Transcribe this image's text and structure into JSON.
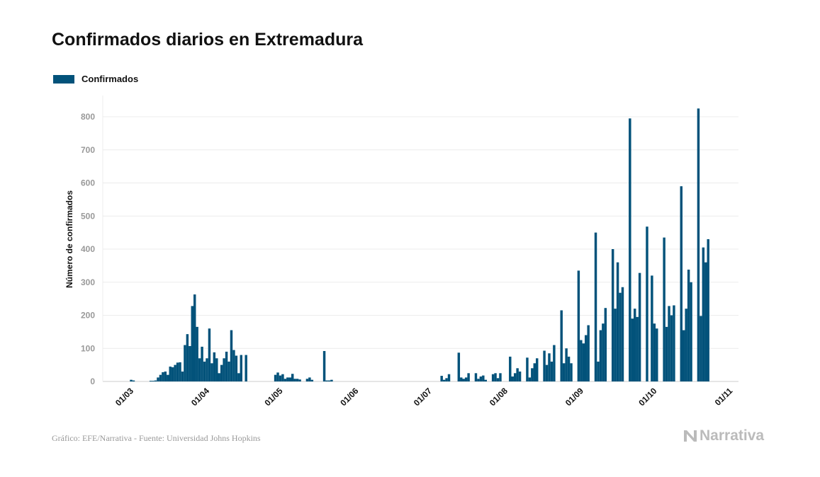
{
  "title": "Confirmados diarios en Extremadura",
  "source": "Gráfico: EFE/Narrativa - Fuente: Universidad Johns Hopkins",
  "logo": "Narrativa",
  "chart_data": {
    "type": "bar",
    "title": "Confirmados diarios en Extremadura",
    "xlabel": "",
    "ylabel": "Número de confirmados",
    "ylim": [
      0,
      860
    ],
    "yticks": [
      0,
      100,
      200,
      300,
      400,
      500,
      600,
      700,
      800
    ],
    "xticks": [
      "01/03",
      "01/04",
      "01/05",
      "01/06",
      "01/07",
      "01/08",
      "01/09",
      "01/10",
      "01/11"
    ],
    "grid": true,
    "legend_position": "top-left",
    "color": "#02527a",
    "series": [
      {
        "name": "Confirmados",
        "points": [
          [
            "01/03",
            5
          ],
          [
            "02/03",
            3
          ],
          [
            "09/03",
            2
          ],
          [
            "10/03",
            2
          ],
          [
            "11/03",
            3
          ],
          [
            "12/03",
            12
          ],
          [
            "13/03",
            20
          ],
          [
            "14/03",
            28
          ],
          [
            "15/03",
            30
          ],
          [
            "16/03",
            20
          ],
          [
            "17/03",
            45
          ],
          [
            "18/03",
            43
          ],
          [
            "19/03",
            50
          ],
          [
            "20/03",
            57
          ],
          [
            "21/03",
            58
          ],
          [
            "22/03",
            30
          ],
          [
            "23/03",
            110
          ],
          [
            "24/03",
            143
          ],
          [
            "25/03",
            107
          ],
          [
            "26/03",
            228
          ],
          [
            "27/03",
            263
          ],
          [
            "28/03",
            165
          ],
          [
            "29/03",
            70
          ],
          [
            "30/03",
            105
          ],
          [
            "31/03",
            60
          ],
          [
            "01/04",
            70
          ],
          [
            "02/04",
            160
          ],
          [
            "03/04",
            55
          ],
          [
            "04/04",
            88
          ],
          [
            "05/04",
            70
          ],
          [
            "06/04",
            25
          ],
          [
            "07/04",
            50
          ],
          [
            "08/04",
            70
          ],
          [
            "09/04",
            90
          ],
          [
            "10/04",
            60
          ],
          [
            "11/04",
            155
          ],
          [
            "12/04",
            95
          ],
          [
            "13/04",
            78
          ],
          [
            "14/04",
            25
          ],
          [
            "15/04",
            80
          ],
          [
            "17/04",
            80
          ],
          [
            "29/04",
            20
          ],
          [
            "30/04",
            27
          ],
          [
            "01/05",
            18
          ],
          [
            "02/05",
            22
          ],
          [
            "03/05",
            8
          ],
          [
            "04/05",
            12
          ],
          [
            "05/05",
            12
          ],
          [
            "06/05",
            23
          ],
          [
            "07/05",
            8
          ],
          [
            "08/05",
            8
          ],
          [
            "09/05",
            6
          ],
          [
            "12/05",
            8
          ],
          [
            "13/05",
            12
          ],
          [
            "14/05",
            5
          ],
          [
            "19/05",
            92
          ],
          [
            "20/05",
            3
          ],
          [
            "21/05",
            3
          ],
          [
            "22/05",
            5
          ],
          [
            "06/07",
            17
          ],
          [
            "07/07",
            5
          ],
          [
            "08/07",
            10
          ],
          [
            "09/07",
            22
          ],
          [
            "13/07",
            87
          ],
          [
            "14/07",
            12
          ],
          [
            "15/07",
            8
          ],
          [
            "16/07",
            12
          ],
          [
            "17/07",
            25
          ],
          [
            "20/07",
            25
          ],
          [
            "21/07",
            8
          ],
          [
            "22/07",
            15
          ],
          [
            "23/07",
            18
          ],
          [
            "24/07",
            5
          ],
          [
            "27/07",
            22
          ],
          [
            "28/07",
            25
          ],
          [
            "29/07",
            10
          ],
          [
            "30/07",
            25
          ],
          [
            "03/08",
            75
          ],
          [
            "04/08",
            15
          ],
          [
            "05/08",
            25
          ],
          [
            "06/08",
            40
          ],
          [
            "07/08",
            30
          ],
          [
            "10/08",
            72
          ],
          [
            "11/08",
            12
          ],
          [
            "12/08",
            40
          ],
          [
            "13/08",
            55
          ],
          [
            "14/08",
            70
          ],
          [
            "17/08",
            93
          ],
          [
            "18/08",
            50
          ],
          [
            "19/08",
            85
          ],
          [
            "20/08",
            60
          ],
          [
            "21/08",
            110
          ],
          [
            "24/08",
            215
          ],
          [
            "25/08",
            55
          ],
          [
            "26/08",
            100
          ],
          [
            "27/08",
            75
          ],
          [
            "28/08",
            55
          ],
          [
            "31/08",
            335
          ],
          [
            "01/09",
            125
          ],
          [
            "02/09",
            115
          ],
          [
            "03/09",
            140
          ],
          [
            "04/09",
            170
          ],
          [
            "07/09",
            450
          ],
          [
            "08/09",
            60
          ],
          [
            "09/09",
            155
          ],
          [
            "10/09",
            175
          ],
          [
            "11/09",
            222
          ],
          [
            "14/09",
            400
          ],
          [
            "15/09",
            220
          ],
          [
            "16/09",
            360
          ],
          [
            "17/09",
            268
          ],
          [
            "18/09",
            285
          ],
          [
            "21/09",
            795
          ],
          [
            "22/09",
            190
          ],
          [
            "23/09",
            220
          ],
          [
            "24/09",
            195
          ],
          [
            "25/09",
            328
          ],
          [
            "28/09",
            468
          ],
          [
            "30/09",
            320
          ],
          [
            "01/10",
            175
          ],
          [
            "02/10",
            160
          ],
          [
            "05/10",
            435
          ],
          [
            "06/10",
            165
          ],
          [
            "07/10",
            228
          ],
          [
            "08/10",
            200
          ],
          [
            "09/10",
            230
          ],
          [
            "12/10",
            590
          ],
          [
            "13/10",
            155
          ],
          [
            "14/10",
            220
          ],
          [
            "15/10",
            338
          ],
          [
            "16/10",
            300
          ],
          [
            "19/10",
            825
          ],
          [
            "20/10",
            198
          ],
          [
            "21/10",
            405
          ],
          [
            "22/10",
            360
          ],
          [
            "23/10",
            430
          ]
        ]
      }
    ]
  }
}
